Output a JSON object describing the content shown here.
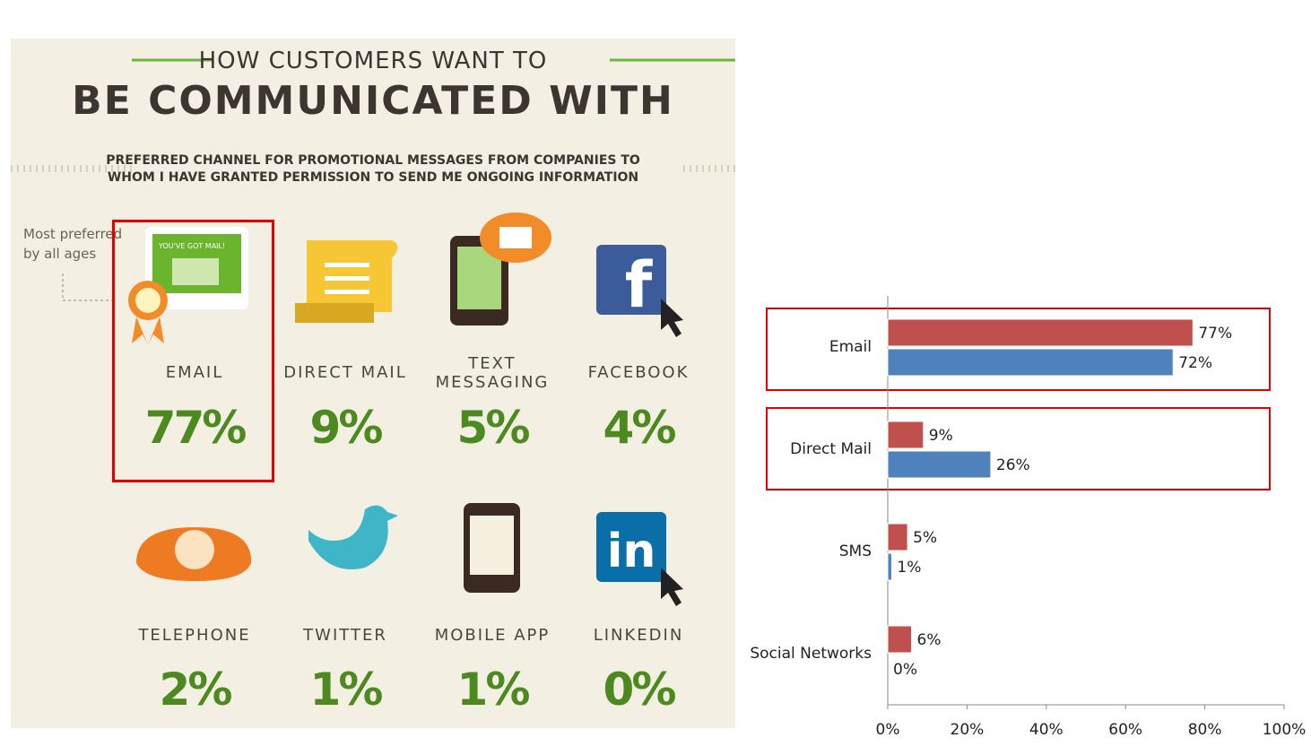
{
  "infographic": {
    "title_top": "HOW CUSTOMERS WANT TO",
    "title_main": "BE COMMUNICATED WITH",
    "subtitle_lines": [
      "PREFERRED CHANNEL FOR PROMOTIONAL MESSAGES FROM COMPANIES TO",
      "WHOM I HAVE GRANTED PERMISSION TO SEND ME ONGOING INFORMATION"
    ],
    "note": "Most preferred by all ages",
    "icon_text": "YOU'VE GOT MAIL!",
    "channels": [
      {
        "label": "EMAIL",
        "value": "77%"
      },
      {
        "label": "DIRECT MAIL",
        "value": "9%"
      },
      {
        "label": "TEXT MESSAGING",
        "value": "5%"
      },
      {
        "label": "FACEBOOK",
        "value": "4%"
      },
      {
        "label": "TELEPHONE",
        "value": "2%"
      },
      {
        "label": "TWITTER",
        "value": "1%"
      },
      {
        "label": "MOBILE APP",
        "value": "1%"
      },
      {
        "label": "LINKEDIN",
        "value": "0%"
      }
    ]
  },
  "chart_data": {
    "type": "bar",
    "orientation": "horizontal",
    "categories": [
      "Email",
      "Direct Mail",
      "SMS",
      "Social Networks"
    ],
    "series": [
      {
        "color": "#c0504d",
        "values": [
          77,
          9,
          5,
          6
        ],
        "value_labels": [
          "77%",
          "9%",
          "5%",
          "6%"
        ]
      },
      {
        "color": "#4f81bd",
        "values": [
          72,
          26,
          1,
          0
        ],
        "value_labels": [
          "72%",
          "26%",
          "1%",
          "0%"
        ]
      }
    ],
    "xlim": [
      0,
      100
    ],
    "xticks": [
      {
        "value": 0,
        "label": "0%"
      },
      {
        "value": 20,
        "label": "20%"
      },
      {
        "value": 40,
        "label": "40%"
      },
      {
        "value": 60,
        "label": "60%"
      },
      {
        "value": 80,
        "label": "80%"
      },
      {
        "value": 100,
        "label": "100%"
      }
    ]
  }
}
